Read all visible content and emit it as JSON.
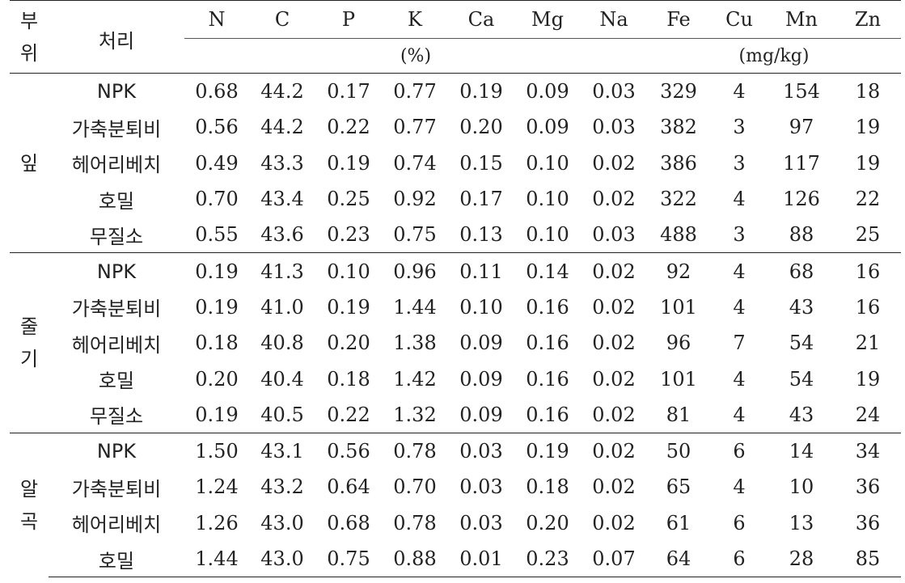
{
  "header": {
    "part_label": [
      "부",
      "위"
    ],
    "treatment_label": "처리",
    "elements": [
      "N",
      "C",
      "P",
      "K",
      "Ca",
      "Mg",
      "Na",
      "Fe",
      "Cu",
      "Mn",
      "Zn"
    ],
    "unit_percent": "(%)",
    "unit_mgkg": "(mg/kg)"
  },
  "groups": [
    {
      "part_chars": [
        "잎"
      ],
      "rows": [
        {
          "treatment": "NPK",
          "values": [
            "0.68",
            "44.2",
            "0.17",
            "0.77",
            "0.19",
            "0.09",
            "0.03",
            "329",
            "4",
            "154",
            "18"
          ]
        },
        {
          "treatment": "가축분퇴비",
          "values": [
            "0.56",
            "44.2",
            "0.22",
            "0.77",
            "0.20",
            "0.09",
            "0.03",
            "382",
            "3",
            "97",
            "19"
          ]
        },
        {
          "treatment": "헤어리베치",
          "values": [
            "0.49",
            "43.3",
            "0.19",
            "0.74",
            "0.15",
            "0.10",
            "0.02",
            "386",
            "3",
            "117",
            "19"
          ]
        },
        {
          "treatment": "호밀",
          "values": [
            "0.70",
            "43.4",
            "0.25",
            "0.92",
            "0.17",
            "0.10",
            "0.02",
            "322",
            "4",
            "126",
            "22"
          ]
        },
        {
          "treatment": "무질소",
          "values": [
            "0.55",
            "43.6",
            "0.23",
            "0.75",
            "0.13",
            "0.10",
            "0.03",
            "488",
            "3",
            "88",
            "25"
          ]
        }
      ]
    },
    {
      "part_chars": [
        "줄",
        "기"
      ],
      "rows": [
        {
          "treatment": "NPK",
          "values": [
            "0.19",
            "41.3",
            "0.10",
            "0.96",
            "0.11",
            "0.14",
            "0.02",
            "92",
            "4",
            "68",
            "16"
          ]
        },
        {
          "treatment": "가축분퇴비",
          "values": [
            "0.19",
            "41.0",
            "0.19",
            "1.44",
            "0.10",
            "0.16",
            "0.02",
            "101",
            "4",
            "43",
            "16"
          ]
        },
        {
          "treatment": "헤어리베치",
          "values": [
            "0.18",
            "40.8",
            "0.20",
            "1.38",
            "0.09",
            "0.16",
            "0.02",
            "96",
            "7",
            "54",
            "21"
          ]
        },
        {
          "treatment": "호밀",
          "values": [
            "0.20",
            "40.4",
            "0.18",
            "1.42",
            "0.09",
            "0.16",
            "0.02",
            "101",
            "4",
            "54",
            "19"
          ]
        },
        {
          "treatment": "무질소",
          "values": [
            "0.19",
            "40.5",
            "0.22",
            "1.32",
            "0.09",
            "0.16",
            "0.02",
            "81",
            "4",
            "43",
            "24"
          ]
        }
      ]
    },
    {
      "part_chars": [
        "알",
        "곡"
      ],
      "rows": [
        {
          "treatment": "NPK",
          "values": [
            "1.50",
            "43.1",
            "0.56",
            "0.78",
            "0.03",
            "0.19",
            "0.02",
            "50",
            "6",
            "14",
            "34"
          ]
        },
        {
          "treatment": "가축분퇴비",
          "values": [
            "1.24",
            "43.2",
            "0.64",
            "0.70",
            "0.03",
            "0.18",
            "0.02",
            "65",
            "4",
            "10",
            "36"
          ]
        },
        {
          "treatment": "헤어리베치",
          "values": [
            "1.26",
            "43.0",
            "0.68",
            "0.78",
            "0.03",
            "0.20",
            "0.02",
            "61",
            "6",
            "13",
            "36"
          ]
        },
        {
          "treatment": "호밀",
          "values": [
            "1.44",
            "43.0",
            "0.75",
            "0.88",
            "0.01",
            "0.23",
            "0.07",
            "64",
            "6",
            "28",
            "85"
          ]
        }
      ]
    }
  ]
}
